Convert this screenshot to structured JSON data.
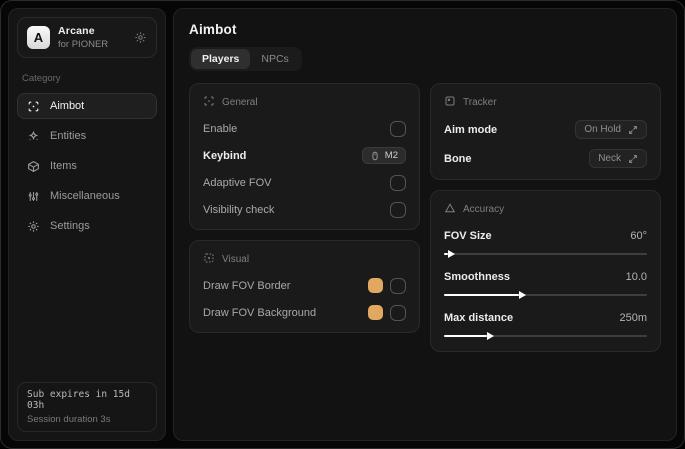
{
  "app": {
    "logo_letter": "A",
    "title": "Arcane",
    "subtitle": "for PIONER"
  },
  "sidebar": {
    "category_label": "Category",
    "items": [
      {
        "label": "Aimbot"
      },
      {
        "label": "Entities"
      },
      {
        "label": "Items"
      },
      {
        "label": "Miscellaneous"
      },
      {
        "label": "Settings"
      }
    ],
    "footer": {
      "sub_expires": "Sub expires in 15d 03h",
      "session_duration": "Session duration 3s"
    }
  },
  "main": {
    "title": "Aimbot",
    "tabs": [
      {
        "label": "Players"
      },
      {
        "label": "NPCs"
      }
    ],
    "general": {
      "title": "General",
      "enable_label": "Enable",
      "keybind_label": "Keybind",
      "keybind_value": "M2",
      "adaptive_fov_label": "Adaptive FOV",
      "visibility_check_label": "Visibility check"
    },
    "visual": {
      "title": "Visual",
      "fov_border_label": "Draw FOV Border",
      "fov_background_label": "Draw FOV Background",
      "swatch_color": "#e2a85f"
    },
    "tracker": {
      "title": "Tracker",
      "aim_mode_label": "Aim mode",
      "aim_mode_value": "On Hold",
      "bone_label": "Bone",
      "bone_value": "Neck"
    },
    "accuracy": {
      "title": "Accuracy",
      "sliders": [
        {
          "label": "FOV Size",
          "value": "60°",
          "percent": 2
        },
        {
          "label": "Smoothness",
          "value": "10.0",
          "percent": 37
        },
        {
          "label": "Max distance",
          "value": "250m",
          "percent": 21
        }
      ]
    }
  }
}
